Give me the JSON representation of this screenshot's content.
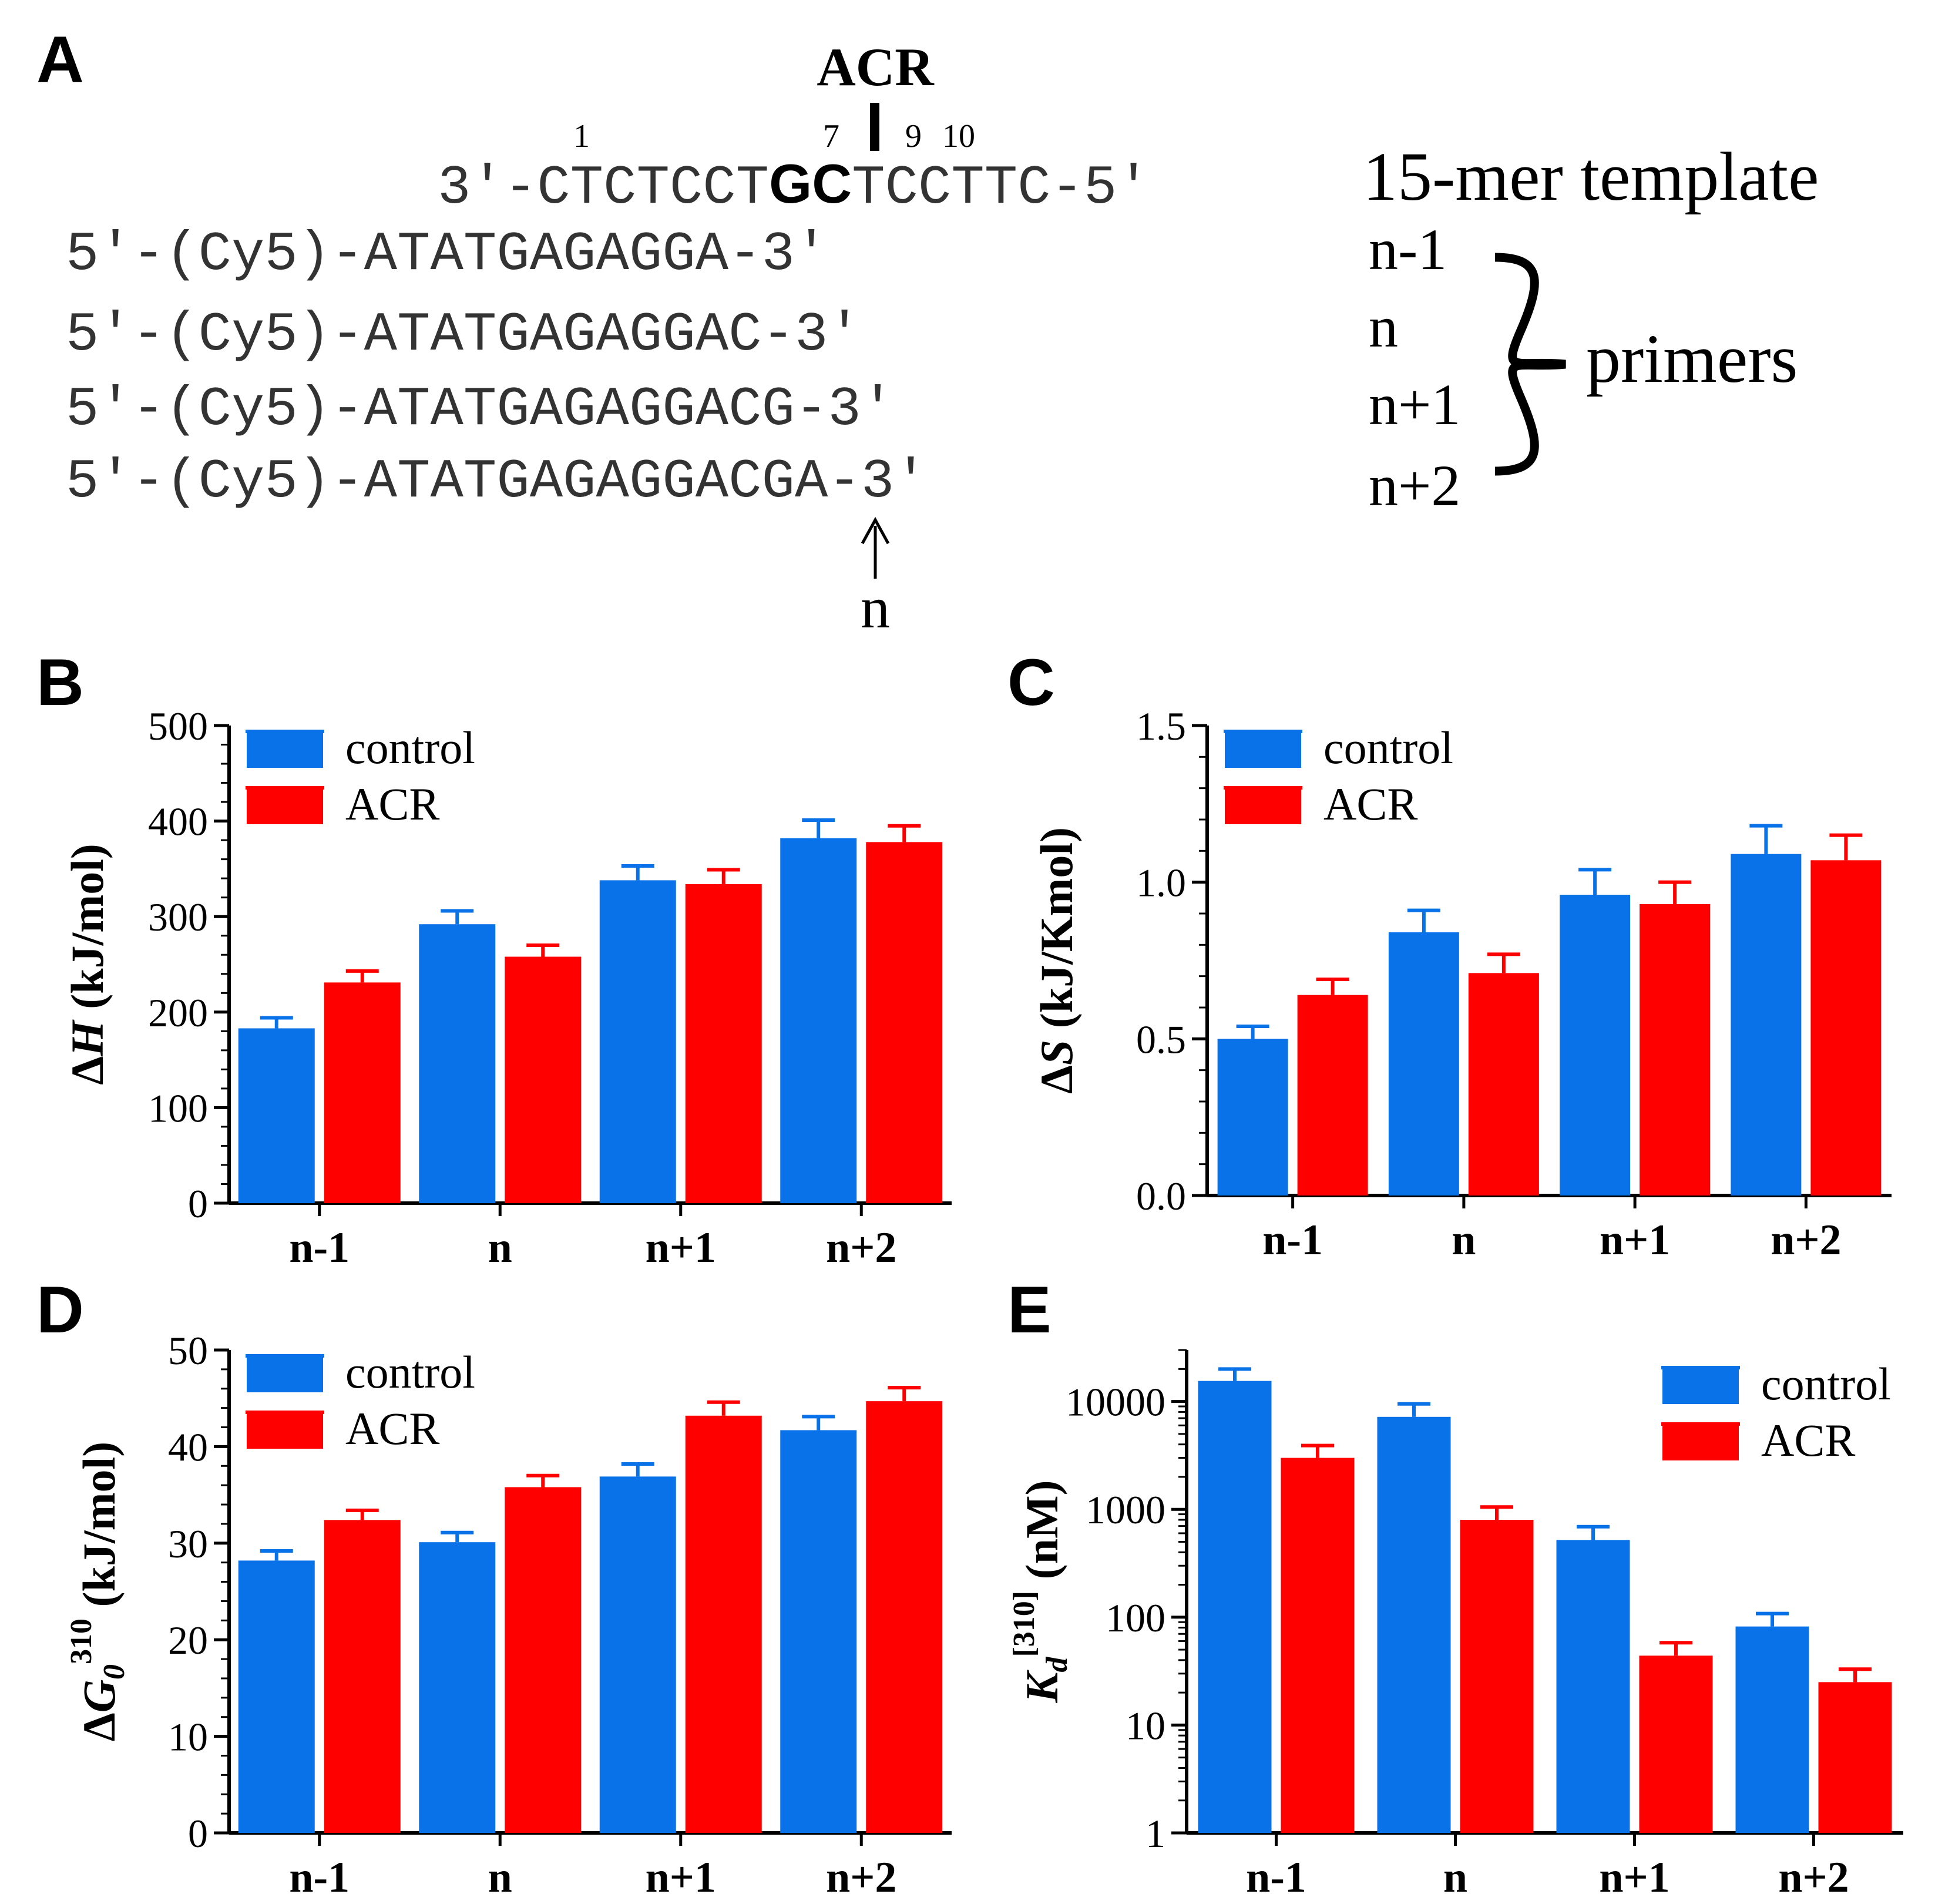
{
  "colors": {
    "control": "#0a72e8",
    "acr": "#ff0000",
    "axis": "#000000"
  },
  "panel_a": {
    "label": "A",
    "acr_title": "ACR",
    "pos_1": "1",
    "pos_7": "7",
    "pos_9": "9",
    "pos_10": "10",
    "template_prefix": "3'-CTCTCCT",
    "template_bold": "GC",
    "template_suffix": "TCCTTC-5'",
    "template_label": "15-mer template",
    "primers": [
      {
        "seq": "5'-(Cy5)-ATATGAGAGGA-3'",
        "name": "n-1"
      },
      {
        "seq": "5'-(Cy5)-ATATGAGAGGAC-3'",
        "name": "n"
      },
      {
        "seq": "5'-(Cy5)-ATATGAGAGGACG-3'",
        "name": "n+1"
      },
      {
        "seq": "5'-(Cy5)-ATATGAGAGGACGA-3'",
        "name": "n+2"
      }
    ],
    "primers_label": "primers",
    "arrow_label": "n"
  },
  "chart_data": [
    {
      "id": "B",
      "panel_label": "B",
      "type": "bar",
      "scale": "linear",
      "categories": [
        "n-1",
        "n",
        "n+1",
        "n+2"
      ],
      "series": [
        {
          "name": "control",
          "values": [
            183,
            292,
            338,
            382
          ],
          "errors": [
            11,
            14,
            15,
            19
          ]
        },
        {
          "name": "ACR",
          "values": [
            231,
            258,
            334,
            378
          ],
          "errors": [
            12,
            12,
            15,
            17
          ]
        }
      ],
      "ylim": [
        0,
        500
      ],
      "ticks": [
        0,
        100,
        200,
        300,
        400,
        500
      ],
      "tick_labels": [
        "0",
        "100",
        "200",
        "300",
        "400",
        "500"
      ],
      "ylabel_pre": "Δ",
      "ylabel_it": "H",
      "ylabel_post": " (kJ/mol)",
      "ylabel_sup": "",
      "legend": [
        "control",
        "ACR"
      ],
      "legend_position": "top-left"
    },
    {
      "id": "C",
      "panel_label": "C",
      "type": "bar",
      "scale": "linear",
      "categories": [
        "n-1",
        "n",
        "n+1",
        "n+2"
      ],
      "series": [
        {
          "name": "control",
          "values": [
            0.5,
            0.84,
            0.96,
            1.09
          ],
          "errors": [
            0.04,
            0.07,
            0.08,
            0.09
          ]
        },
        {
          "name": "ACR",
          "values": [
            0.64,
            0.71,
            0.93,
            1.07
          ],
          "errors": [
            0.05,
            0.06,
            0.07,
            0.08
          ]
        }
      ],
      "ylim": [
        0,
        1.5
      ],
      "ticks": [
        0,
        0.5,
        1.0,
        1.5
      ],
      "tick_labels": [
        "0.0",
        "0.5",
        "1.0",
        "1.5"
      ],
      "ylabel_pre": "Δ",
      "ylabel_it": "S",
      "ylabel_post": " (kJ/Kmol)",
      "ylabel_sup": "",
      "legend": [
        "control",
        "ACR"
      ],
      "legend_position": "top-left"
    },
    {
      "id": "D",
      "panel_label": "D",
      "type": "bar",
      "scale": "linear",
      "categories": [
        "n-1",
        "n",
        "n+1",
        "n+2"
      ],
      "series": [
        {
          "name": "control",
          "values": [
            28.2,
            30.1,
            36.9,
            41.7
          ],
          "errors": [
            1.0,
            1.0,
            1.3,
            1.4
          ]
        },
        {
          "name": "ACR",
          "values": [
            32.4,
            35.8,
            43.2,
            44.7
          ],
          "errors": [
            1.0,
            1.2,
            1.4,
            1.4
          ]
        }
      ],
      "ylim": [
        0,
        50
      ],
      "ticks": [
        0,
        10,
        20,
        30,
        40,
        50
      ],
      "tick_labels": [
        "0",
        "10",
        "20",
        "30",
        "40",
        "50"
      ],
      "ylabel_pre": "Δ",
      "ylabel_it": "G",
      "ylabel_sub": "0",
      "ylabel_sup": "310",
      "ylabel_post": " (kJ/mol)",
      "legend": [
        "control",
        "ACR"
      ],
      "legend_position": "top-left"
    },
    {
      "id": "E",
      "panel_label": "E",
      "type": "bar",
      "scale": "log",
      "categories": [
        "n-1",
        "n",
        "n+1",
        "n+2"
      ],
      "series": [
        {
          "name": "control",
          "values": [
            15500,
            7200,
            520,
            82
          ],
          "errors_upper": [
            20000,
            9500,
            690,
            108
          ]
        },
        {
          "name": "ACR",
          "values": [
            3000,
            800,
            44,
            25
          ],
          "errors_upper": [
            3900,
            1050,
            58,
            33
          ]
        }
      ],
      "ylim": [
        1,
        30000
      ],
      "ticks": [
        1,
        10,
        100,
        1000,
        10000
      ],
      "tick_labels": [
        "1",
        "10",
        "100",
        "1000",
        "10000"
      ],
      "ylabel_it": "K",
      "ylabel_sub": "d",
      "ylabel_sup": "[310]",
      "ylabel_post": " (nM)",
      "legend": [
        "control",
        "ACR"
      ],
      "legend_position": "top-right"
    }
  ]
}
